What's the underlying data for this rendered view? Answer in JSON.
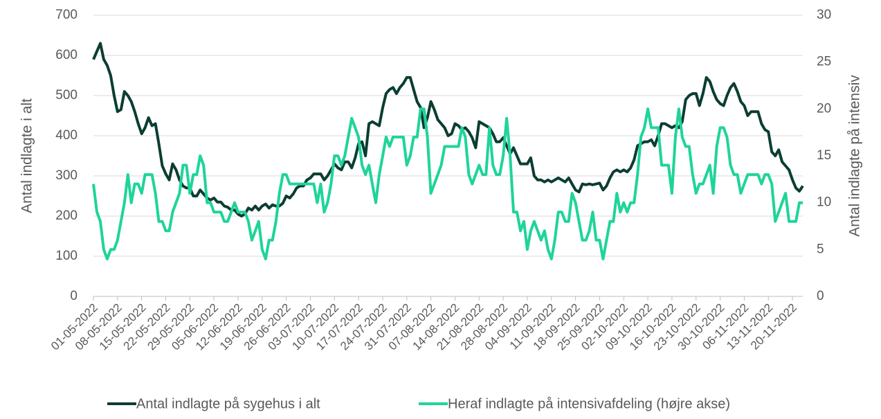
{
  "chart_data": {
    "type": "line",
    "y_label": "Antal indlagte i alt",
    "y2_label": "Antal indlagte på intensiv",
    "categories": [
      "01-05-2022",
      null,
      null,
      null,
      null,
      null,
      null,
      "08-05-2022",
      null,
      null,
      null,
      null,
      null,
      null,
      "15-05-2022",
      null,
      null,
      null,
      null,
      null,
      null,
      "22-05-2022",
      null,
      null,
      null,
      null,
      null,
      null,
      "29-05-2022",
      null,
      null,
      null,
      null,
      null,
      null,
      "05-06-2022",
      null,
      null,
      null,
      null,
      null,
      null,
      "12-06-2022",
      null,
      null,
      null,
      null,
      null,
      null,
      "19-06-2022",
      null,
      null,
      null,
      null,
      null,
      null,
      "26-06-2022",
      null,
      null,
      null,
      null,
      null,
      null,
      "03-07-2022",
      null,
      null,
      null,
      null,
      null,
      null,
      "10-07-2022",
      null,
      null,
      null,
      null,
      null,
      null,
      "17-07-2022",
      null,
      null,
      null,
      null,
      null,
      null,
      "24-07-2022",
      null,
      null,
      null,
      null,
      null,
      null,
      "31-07-2022",
      null,
      null,
      null,
      null,
      null,
      null,
      "07-08-2022",
      null,
      null,
      null,
      null,
      null,
      null,
      "14-08-2022",
      null,
      null,
      null,
      null,
      null,
      null,
      "21-08-2022",
      null,
      null,
      null,
      null,
      null,
      null,
      "28-08-2022",
      null,
      null,
      null,
      null,
      null,
      null,
      "04-09-2022",
      null,
      null,
      null,
      null,
      null,
      null,
      "11-09-2022",
      null,
      null,
      null,
      null,
      null,
      null,
      "18-09-2022",
      null,
      null,
      null,
      null,
      null,
      null,
      "25-09-2022",
      null,
      null,
      null,
      null,
      null,
      null,
      "02-10-2022",
      null,
      null,
      null,
      null,
      null,
      null,
      "09-10-2022",
      null,
      null,
      null,
      null,
      null,
      null,
      "16-10-2022",
      null,
      null,
      null,
      null,
      null,
      null,
      "23-10-2022",
      null,
      null,
      null,
      null,
      null,
      null,
      "30-10-2022",
      null,
      null,
      null,
      null,
      null,
      null,
      "06-11-2022",
      null,
      null,
      null,
      null,
      null,
      null,
      "13-11-2022",
      null,
      null,
      null,
      null,
      null,
      null,
      "20-11-2022",
      null,
      null,
      null
    ],
    "series": [
      {
        "name": "Antal indlagte på sygehus i alt",
        "color": "#0b3d33",
        "values": [
          590,
          610,
          630,
          590,
          575,
          550,
          500,
          460,
          465,
          510,
          500,
          485,
          460,
          430,
          405,
          420,
          445,
          425,
          430,
          380,
          325,
          305,
          290,
          330,
          315,
          290,
          275,
          270,
          270,
          250,
          250,
          265,
          255,
          245,
          240,
          245,
          235,
          235,
          225,
          222,
          215,
          215,
          205,
          200,
          205,
          220,
          215,
          225,
          215,
          225,
          230,
          220,
          228,
          225,
          225,
          232,
          250,
          245,
          255,
          270,
          275,
          275,
          290,
          295,
          305,
          305,
          305,
          290,
          300,
          315,
          330,
          320,
          315,
          335,
          335,
          320,
          345,
          380,
          385,
          350,
          430,
          435,
          430,
          425,
          470,
          505,
          515,
          520,
          505,
          520,
          530,
          545,
          545,
          515,
          485,
          470,
          420,
          445,
          485,
          465,
          440,
          430,
          420,
          400,
          405,
          430,
          425,
          415,
          420,
          410,
          395,
          370,
          435,
          430,
          425,
          420,
          405,
          385,
          385,
          395,
          375,
          355,
          370,
          350,
          330,
          330,
          330,
          345,
          300,
          290,
          290,
          285,
          290,
          285,
          290,
          295,
          290,
          285,
          295,
          280,
          265,
          260,
          280,
          278,
          280,
          278,
          280,
          282,
          265,
          275,
          295,
          310,
          315,
          310,
          315,
          310,
          320,
          340,
          375,
          380,
          385,
          385,
          390,
          375,
          400,
          430,
          430,
          425,
          420,
          425,
          420,
          435,
          490,
          500,
          505,
          505,
          475,
          505,
          545,
          535,
          510,
          490,
          480,
          475,
          500,
          520,
          530,
          510,
          485,
          475,
          450,
          460,
          460,
          460,
          430,
          415,
          410,
          360,
          350,
          365,
          335,
          325,
          315,
          290,
          270,
          262,
          275
        ]
      },
      {
        "name": "Heraf indlagte på intensivafdeling (højre akse)",
        "color": "#1fd49a",
        "axis": "y2",
        "values": [
          12,
          9,
          8,
          5,
          4,
          5,
          5,
          6,
          8,
          10,
          13,
          10,
          12,
          12,
          11,
          13,
          13,
          13,
          11,
          8,
          8,
          7,
          7,
          9,
          10,
          11,
          14,
          14,
          11,
          13,
          13,
          15,
          14,
          10,
          10,
          9,
          9,
          9,
          8,
          8,
          9,
          10,
          9,
          9,
          9,
          8,
          6,
          7,
          8,
          5,
          4,
          6,
          6,
          8,
          11,
          13,
          13,
          12,
          12,
          12,
          12,
          12,
          12,
          12,
          12,
          10,
          12,
          9,
          10,
          12,
          15,
          15,
          14,
          15,
          17,
          19,
          18,
          17,
          14,
          13,
          14,
          12,
          10,
          13,
          15,
          17,
          16,
          17,
          17,
          17,
          17,
          14,
          15,
          17,
          17,
          20,
          20,
          17,
          11,
          12,
          13,
          14,
          16,
          16,
          16,
          16,
          16,
          18,
          17,
          13,
          12,
          13,
          14,
          13,
          13,
          18,
          14,
          13,
          13,
          15,
          19,
          15,
          9,
          9,
          7,
          8,
          5,
          7,
          8,
          7,
          6,
          7,
          5,
          4,
          6,
          9,
          9,
          8,
          8,
          11,
          10,
          8,
          6,
          6,
          7,
          9,
          6,
          6,
          4,
          6,
          8,
          8,
          11,
          9,
          10,
          9,
          10,
          10,
          13,
          17,
          18,
          20,
          18,
          18,
          18,
          14,
          14,
          14,
          11,
          17,
          20,
          17,
          16,
          16,
          13,
          11,
          12,
          12,
          13,
          14,
          11,
          16,
          18,
          18,
          17,
          14,
          13,
          13,
          11,
          12,
          13,
          13,
          13,
          13,
          12,
          13,
          13,
          12,
          8,
          9,
          10,
          11,
          8,
          8,
          8,
          10,
          10
        ]
      }
    ],
    "ylim": [
      0,
      700
    ],
    "yticks": [
      0,
      100,
      200,
      300,
      400,
      500,
      600,
      700
    ],
    "y2lim": [
      0,
      30
    ],
    "y2ticks": [
      0,
      5,
      10,
      15,
      20,
      25,
      30
    ],
    "grid": true,
    "legend": "bottom"
  }
}
